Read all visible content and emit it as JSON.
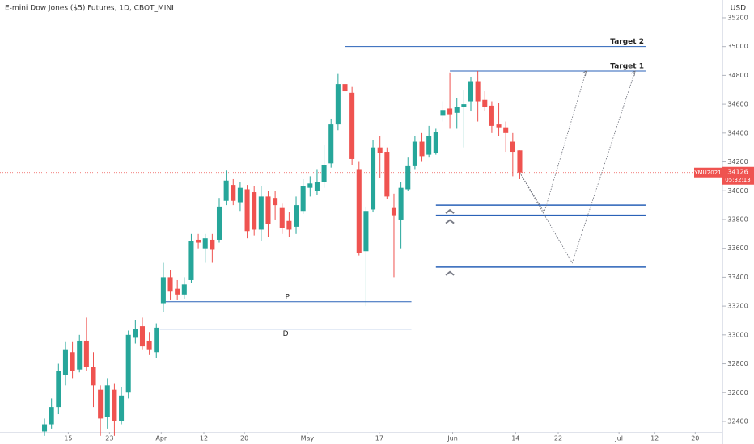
{
  "chart_data": {
    "type": "candlestick",
    "title": "E-mini Dow Jones ($5) Futures, 1D, CBOT_MINI",
    "currency": "USD",
    "symbol": "YMU2021",
    "last_price": 34126,
    "countdown": "05:32:13",
    "up_color": "#26a69a",
    "down_color": "#ef5350",
    "level_color": "#2a62b8",
    "xlim": [
      -6.37,
      97
    ],
    "ylim": [
      32327,
      35323
    ],
    "yticks": [
      32400,
      32600,
      32800,
      33000,
      33200,
      33400,
      33600,
      33800,
      34000,
      34200,
      34400,
      34600,
      34800,
      35000,
      35200
    ],
    "xticks": [
      {
        "value": 3.4,
        "label": "15"
      },
      {
        "value": 9.3,
        "label": "23"
      },
      {
        "value": 16.7,
        "label": "Apr"
      },
      {
        "value": 22.8,
        "label": "12"
      },
      {
        "value": 28.6,
        "label": "20"
      },
      {
        "value": 37.6,
        "label": "May"
      },
      {
        "value": 47.9,
        "label": "17"
      },
      {
        "value": 58.4,
        "label": "Jun"
      },
      {
        "value": 67.4,
        "label": "14"
      },
      {
        "value": 73.5,
        "label": "22"
      },
      {
        "value": 82.2,
        "label": "Jul"
      },
      {
        "value": 87.3,
        "label": "12"
      },
      {
        "value": 93.1,
        "label": "20"
      }
    ],
    "x": [
      0,
      1,
      2,
      3,
      4,
      5,
      6,
      7,
      8,
      9,
      10,
      11,
      12,
      13,
      14,
      15,
      16,
      17,
      18,
      19,
      20,
      21,
      22,
      23,
      24,
      25,
      26,
      27,
      28,
      29,
      30,
      31,
      32,
      33,
      34,
      35,
      36,
      37,
      38,
      39,
      40,
      41,
      42,
      43,
      44,
      45,
      46,
      47,
      48,
      49,
      50,
      51,
      52,
      53,
      54,
      55,
      56,
      57,
      58,
      59,
      60,
      61,
      62,
      63,
      64,
      65,
      66,
      67,
      68
    ],
    "open": [
      32330,
      32380,
      32500,
      32720,
      32880,
      32760,
      32960,
      32780,
      32620,
      32430,
      32620,
      32400,
      32600,
      32980,
      33060,
      32960,
      32880,
      33220,
      33400,
      33320,
      33280,
      33380,
      33660,
      33600,
      33660,
      33660,
      33930,
      34040,
      33920,
      34010,
      33990,
      33730,
      33960,
      33950,
      33880,
      33790,
      33750,
      33860,
      34020,
      34000,
      34060,
      34190,
      34460,
      34740,
      34680,
      34150,
      33580,
      33870,
      34300,
      34270,
      33880,
      33800,
      34010,
      34170,
      34340,
      34250,
      34260,
      34520,
      34570,
      34540,
      34580,
      34620,
      34760,
      34630,
      34590,
      34460,
      34440,
      34340,
      34280
    ],
    "high": [
      32420,
      32560,
      32800,
      32950,
      32950,
      33000,
      33120,
      32880,
      32650,
      32700,
      32660,
      32640,
      33030,
      33100,
      33120,
      33020,
      33080,
      33500,
      33450,
      33380,
      33400,
      33700,
      33700,
      33700,
      33700,
      33950,
      34140,
      34080,
      34060,
      34040,
      34030,
      34030,
      34000,
      34000,
      33910,
      33850,
      33960,
      34080,
      34100,
      34150,
      34320,
      34500,
      34810,
      35000,
      34720,
      34200,
      33890,
      34350,
      34380,
      34300,
      33980,
      34060,
      34230,
      34380,
      34400,
      34450,
      34430,
      34620,
      34820,
      34640,
      34700,
      34790,
      34830,
      34690,
      34620,
      34610,
      34480,
      34400,
      34280
    ],
    "low": [
      32300,
      32350,
      32450,
      32650,
      32700,
      32740,
      32750,
      32500,
      32300,
      32350,
      32300,
      32380,
      32560,
      32940,
      32900,
      32860,
      32840,
      33160,
      33240,
      33240,
      33250,
      33360,
      33600,
      33500,
      33500,
      33640,
      33900,
      33900,
      33860,
      33670,
      33690,
      33650,
      33680,
      33800,
      33700,
      33680,
      33700,
      33840,
      33960,
      33970,
      34020,
      34160,
      34420,
      34650,
      34180,
      33550,
      33200,
      33850,
      34090,
      33940,
      33400,
      33600,
      34000,
      34150,
      34200,
      34230,
      34250,
      34480,
      34430,
      34430,
      34300,
      34550,
      34480,
      34550,
      34400,
      34380,
      34270,
      34100,
      34080
    ],
    "close": [
      32380,
      32500,
      32750,
      32900,
      32750,
      32960,
      32780,
      32650,
      32420,
      32650,
      32400,
      32580,
      33000,
      33040,
      32920,
      32900,
      33050,
      33400,
      33300,
      33280,
      33350,
      33650,
      33640,
      33670,
      33590,
      33890,
      34070,
      33930,
      34020,
      33720,
      33730,
      33960,
      33770,
      33900,
      33740,
      33730,
      33900,
      34030,
      34050,
      34060,
      34180,
      34460,
      34740,
      34690,
      34220,
      33570,
      33860,
      34300,
      34260,
      33960,
      33830,
      34020,
      34170,
      34340,
      34240,
      34380,
      34410,
      34560,
      34530,
      34580,
      34600,
      34760,
      34620,
      34580,
      34450,
      34440,
      34400,
      34270,
      34126
    ],
    "levels": [
      {
        "label": "Target 2",
        "value": 35000,
        "from": 43,
        "to": 86,
        "label_position": "above-right"
      },
      {
        "label": "Target 1",
        "value": 34830,
        "from": 58,
        "to": 86,
        "label_position": "above-right"
      },
      {
        "label": "P",
        "value": 33230,
        "from": 17,
        "to": 52.5,
        "label_position": "above-center"
      },
      {
        "label": "D",
        "value": 33040,
        "from": 16.5,
        "to": 52.5,
        "label_position": "below-center"
      },
      {
        "value": 33900,
        "from": 56,
        "to": 86
      },
      {
        "value": 33830,
        "from": 56,
        "to": 86
      },
      {
        "value": 33470,
        "from": 56,
        "to": 86
      }
    ],
    "projections": [
      {
        "x": [
          68,
          71.5,
          77.5
        ],
        "y": [
          34126,
          33850,
          34830
        ]
      },
      {
        "x": [
          68,
          75.5,
          84.5
        ],
        "y": [
          34126,
          33500,
          34830
        ]
      }
    ]
  }
}
